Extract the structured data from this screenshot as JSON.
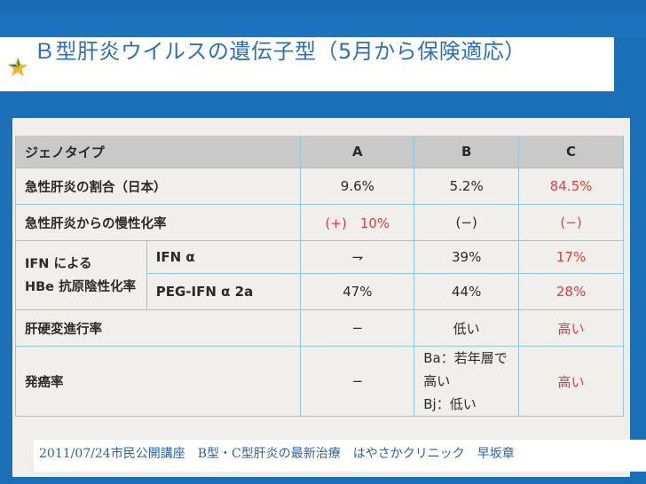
{
  "slide": {
    "title_part1": "Ｂ型肝炎ウイルスの遺伝子型（",
    "title_num": "5",
    "title_part2": "月から保険適応）",
    "footer": "2011/07/24市民公開講座　B型・C型肝炎の最新治療　はやさかクリニック　早坂章",
    "colors": {
      "background": "#1b6fb6",
      "title": "#2f6fb7",
      "red_values": "#e23c3c",
      "grid_lines": "#8fc7de"
    },
    "icon": "star-icon"
  },
  "table": {
    "header": {
      "label": "ジェノタイプ",
      "a": "A",
      "b": "B",
      "c": "C"
    },
    "rows": {
      "acute_ratio": {
        "label": "急性肝炎の割合（日本）",
        "a": "9.6%",
        "b": "5.2%",
        "c": "84.5%"
      },
      "chronic_rate": {
        "label": "急性肝炎からの慢性化率",
        "a": "(+)　10%",
        "b": "(−)",
        "c": "(−)"
      },
      "ifn_group": {
        "label_line1": "IFN による",
        "label_line2": "HBe 抗原陰性化率",
        "ifn_alpha": {
          "label": "IFN α",
          "a": "⇁",
          "b": "39%",
          "c": "17%"
        },
        "peg_ifn": {
          "label": "PEG-IFN α 2a",
          "a": "47%",
          "b": "44%",
          "c": "28%"
        }
      },
      "cirrhosis": {
        "label": "肝硬変進行率",
        "a": "−",
        "b": "低い",
        "c": "高い"
      },
      "cancer": {
        "label": "発癌率",
        "a": "−",
        "b_line1": "Ba：若年層で高い",
        "b_line2": "Bj：低い",
        "c": "高い"
      }
    }
  }
}
